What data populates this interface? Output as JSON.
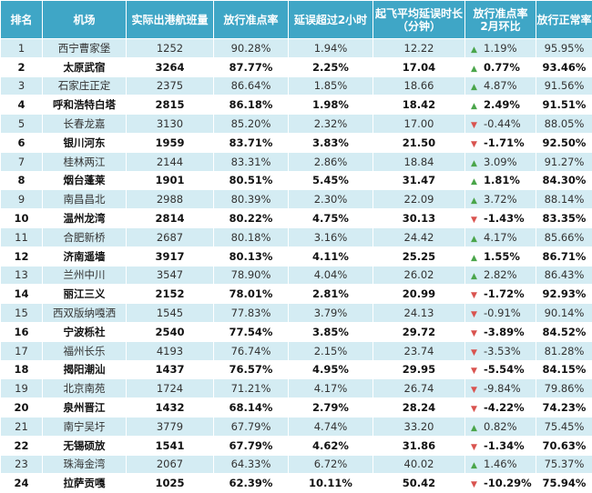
{
  "headers": [
    "排名",
    "机场",
    "实际出港航班量",
    "放行准点率",
    "延误超过2小时",
    "起飞平均延误时长\n（分钟）",
    "放行准点率\n2月环比",
    "放行正常率"
  ],
  "rows": [
    {
      "rank": "1",
      "airport": "西宁曹家堡",
      "flights": "1252",
      "ontime": "90.28%",
      "delay2h": "1.94%",
      "avgdelay": "12.22",
      "mom": "1.19%",
      "trend": "up",
      "normal": "95.95%"
    },
    {
      "rank": "2",
      "airport": "太原武宿",
      "flights": "3264",
      "ontime": "87.77%",
      "delay2h": "2.25%",
      "avgdelay": "17.04",
      "mom": "0.77%",
      "trend": "up",
      "normal": "93.46%"
    },
    {
      "rank": "3",
      "airport": "石家庄正定",
      "flights": "2375",
      "ontime": "86.64%",
      "delay2h": "1.85%",
      "avgdelay": "18.66",
      "mom": "4.87%",
      "trend": "up",
      "normal": "91.56%"
    },
    {
      "rank": "4",
      "airport": "呼和浩特白塔",
      "flights": "2815",
      "ontime": "86.18%",
      "delay2h": "1.98%",
      "avgdelay": "18.42",
      "mom": "2.49%",
      "trend": "up",
      "normal": "91.51%"
    },
    {
      "rank": "5",
      "airport": "长春龙嘉",
      "flights": "3130",
      "ontime": "85.20%",
      "delay2h": "2.32%",
      "avgdelay": "17.00",
      "mom": "-0.44%",
      "trend": "down",
      "normal": "88.05%"
    },
    {
      "rank": "6",
      "airport": "银川河东",
      "flights": "1959",
      "ontime": "83.71%",
      "delay2h": "3.83%",
      "avgdelay": "21.50",
      "mom": "-1.71%",
      "trend": "down",
      "normal": "92.50%"
    },
    {
      "rank": "7",
      "airport": "桂林两江",
      "flights": "2144",
      "ontime": "83.31%",
      "delay2h": "2.86%",
      "avgdelay": "18.84",
      "mom": "3.09%",
      "trend": "up",
      "normal": "91.27%"
    },
    {
      "rank": "8",
      "airport": "烟台蓬莱",
      "flights": "1901",
      "ontime": "80.51%",
      "delay2h": "5.45%",
      "avgdelay": "31.47",
      "mom": "1.81%",
      "trend": "up",
      "normal": "84.30%"
    },
    {
      "rank": "9",
      "airport": "南昌昌北",
      "flights": "2988",
      "ontime": "80.39%",
      "delay2h": "2.30%",
      "avgdelay": "22.09",
      "mom": "3.72%",
      "trend": "up",
      "normal": "88.14%"
    },
    {
      "rank": "10",
      "airport": "温州龙湾",
      "flights": "2814",
      "ontime": "80.22%",
      "delay2h": "4.75%",
      "avgdelay": "30.13",
      "mom": "-1.43%",
      "trend": "down",
      "normal": "83.35%"
    },
    {
      "rank": "11",
      "airport": "合肥新桥",
      "flights": "2687",
      "ontime": "80.18%",
      "delay2h": "3.16%",
      "avgdelay": "24.42",
      "mom": "4.17%",
      "trend": "up",
      "normal": "85.66%"
    },
    {
      "rank": "12",
      "airport": "济南遥墙",
      "flights": "3917",
      "ontime": "80.13%",
      "delay2h": "4.11%",
      "avgdelay": "25.25",
      "mom": "1.55%",
      "trend": "up",
      "normal": "86.71%"
    },
    {
      "rank": "13",
      "airport": "兰州中川",
      "flights": "3547",
      "ontime": "78.90%",
      "delay2h": "4.04%",
      "avgdelay": "26.02",
      "mom": "2.82%",
      "trend": "up",
      "normal": "86.43%"
    },
    {
      "rank": "14",
      "airport": "丽江三义",
      "flights": "2152",
      "ontime": "78.01%",
      "delay2h": "2.81%",
      "avgdelay": "20.99",
      "mom": "-1.72%",
      "trend": "down",
      "normal": "92.93%"
    },
    {
      "rank": "15",
      "airport": "西双版纳嘎洒",
      "flights": "1545",
      "ontime": "77.83%",
      "delay2h": "3.79%",
      "avgdelay": "24.13",
      "mom": "-0.91%",
      "trend": "down",
      "normal": "90.14%"
    },
    {
      "rank": "16",
      "airport": "宁波栎社",
      "flights": "2540",
      "ontime": "77.54%",
      "delay2h": "3.85%",
      "avgdelay": "29.72",
      "mom": "-3.89%",
      "trend": "down",
      "normal": "84.52%"
    },
    {
      "rank": "17",
      "airport": "福州长乐",
      "flights": "4193",
      "ontime": "76.74%",
      "delay2h": "2.15%",
      "avgdelay": "23.74",
      "mom": "-3.53%",
      "trend": "down",
      "normal": "81.28%"
    },
    {
      "rank": "18",
      "airport": "揭阳潮汕",
      "flights": "1437",
      "ontime": "76.57%",
      "delay2h": "4.95%",
      "avgdelay": "29.95",
      "mom": "-5.54%",
      "trend": "down",
      "normal": "84.15%"
    },
    {
      "rank": "19",
      "airport": "北京南苑",
      "flights": "1724",
      "ontime": "71.21%",
      "delay2h": "4.17%",
      "avgdelay": "26.74",
      "mom": "-9.84%",
      "trend": "down",
      "normal": "79.86%"
    },
    {
      "rank": "20",
      "airport": "泉州晋江",
      "flights": "1432",
      "ontime": "68.14%",
      "delay2h": "2.79%",
      "avgdelay": "28.24",
      "mom": "-4.22%",
      "trend": "down",
      "normal": "74.23%"
    },
    {
      "rank": "21",
      "airport": "南宁吴圩",
      "flights": "3779",
      "ontime": "67.79%",
      "delay2h": "4.74%",
      "avgdelay": "33.20",
      "mom": "0.82%",
      "trend": "up",
      "normal": "75.45%"
    },
    {
      "rank": "22",
      "airport": "无锡硕放",
      "flights": "1541",
      "ontime": "67.79%",
      "delay2h": "4.62%",
      "avgdelay": "31.86",
      "mom": "-1.34%",
      "trend": "down",
      "normal": "70.63%"
    },
    {
      "rank": "23",
      "airport": "珠海金湾",
      "flights": "2067",
      "ontime": "64.33%",
      "delay2h": "6.72%",
      "avgdelay": "40.02",
      "mom": "1.46%",
      "trend": "up",
      "normal": "75.37%"
    },
    {
      "rank": "24",
      "airport": "拉萨贡嘎",
      "flights": "1025",
      "ontime": "62.39%",
      "delay2h": "10.11%",
      "avgdelay": "50.42",
      "mom": "-10.29%",
      "trend": "down",
      "normal": "75.94%"
    }
  ],
  "colors": {
    "header_bg": "#3fa6c6",
    "stripe": "#d4ecf3",
    "up": "#4aa54a",
    "down": "#d9534f"
  },
  "icons": {
    "up": "triangle-up-icon",
    "down": "triangle-down-icon"
  }
}
